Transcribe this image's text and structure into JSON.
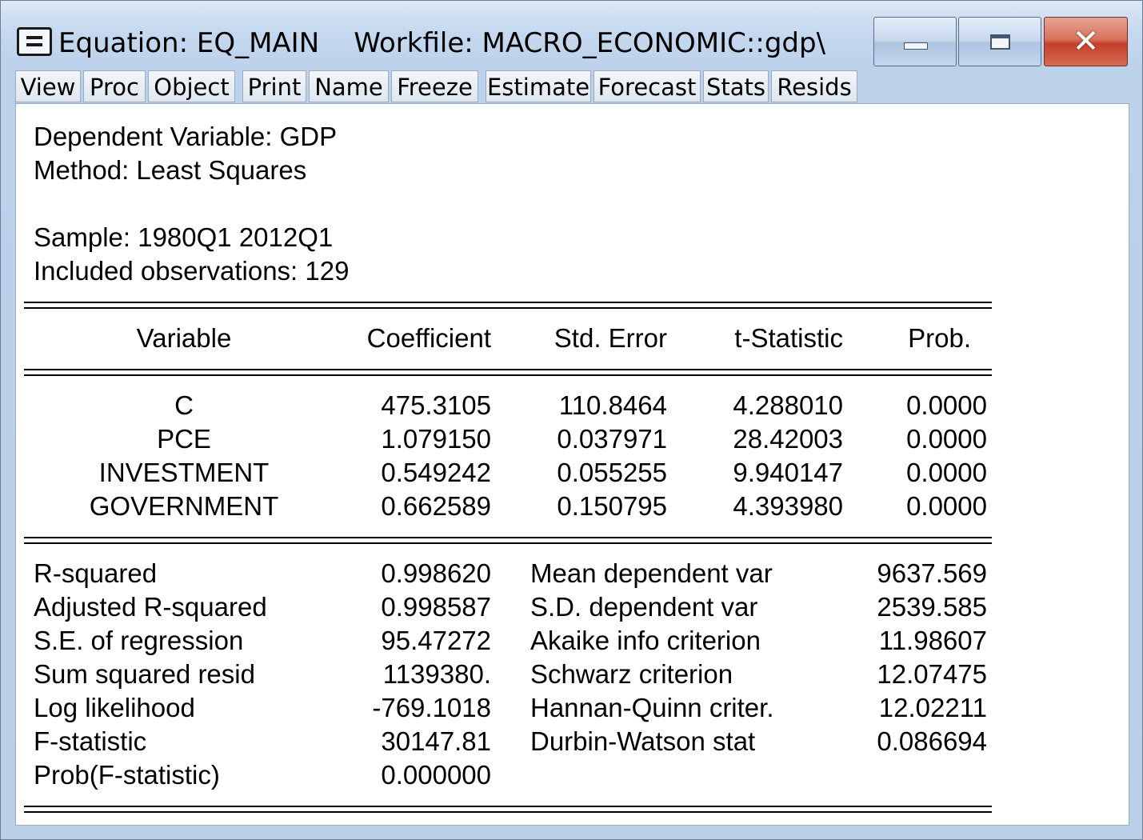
{
  "window": {
    "title": "Equation: EQ_MAIN    Workfile: MACRO_ECONOMIC::gdp\\"
  },
  "toolbar": [
    "View",
    "Proc",
    "Object",
    "Print",
    "Name",
    "Freeze",
    "Estimate",
    "Forecast",
    "Stats",
    "Resids"
  ],
  "header": {
    "dependent": "Dependent Variable: GDP",
    "method": "Method: Least Squares",
    "sample": "Sample: 1980Q1 2012Q1",
    "observations": "Included observations: 129"
  },
  "table": {
    "columns": [
      "Variable",
      "Coefficient",
      "Std. Error",
      "t-Statistic",
      "Prob."
    ],
    "rows": [
      {
        "variable": "C",
        "coef": "475.3105",
        "se": "110.8464",
        "t": "4.288010",
        "p": "0.0000"
      },
      {
        "variable": "PCE",
        "coef": "1.079150",
        "se": "0.037971",
        "t": "28.42003",
        "p": "0.0000"
      },
      {
        "variable": "INVESTMENT",
        "coef": "0.549242",
        "se": "0.055255",
        "t": "9.940147",
        "p": "0.0000"
      },
      {
        "variable": "GOVERNMENT",
        "coef": "0.662589",
        "se": "0.150795",
        "t": "4.393980",
        "p": "0.0000"
      }
    ]
  },
  "stats": {
    "left": [
      {
        "label": "R-squared",
        "value": "0.998620"
      },
      {
        "label": "Adjusted R-squared",
        "value": "0.998587"
      },
      {
        "label": "S.E. of regression",
        "value": "95.47272"
      },
      {
        "label": "Sum squared resid",
        "value": "1139380."
      },
      {
        "label": "Log likelihood",
        "value": "-769.1018"
      },
      {
        "label": "F-statistic",
        "value": "30147.81"
      },
      {
        "label": "Prob(F-statistic)",
        "value": "0.000000"
      }
    ],
    "right": [
      {
        "label": "Mean dependent var",
        "value": "9637.569"
      },
      {
        "label": "S.D. dependent var",
        "value": "2539.585"
      },
      {
        "label": "Akaike info criterion",
        "value": "11.98607"
      },
      {
        "label": "Schwarz criterion",
        "value": "12.07475"
      },
      {
        "label": "Hannan-Quinn criter.",
        "value": "12.02211"
      },
      {
        "label": "Durbin-Watson stat",
        "value": "0.086694"
      }
    ]
  }
}
